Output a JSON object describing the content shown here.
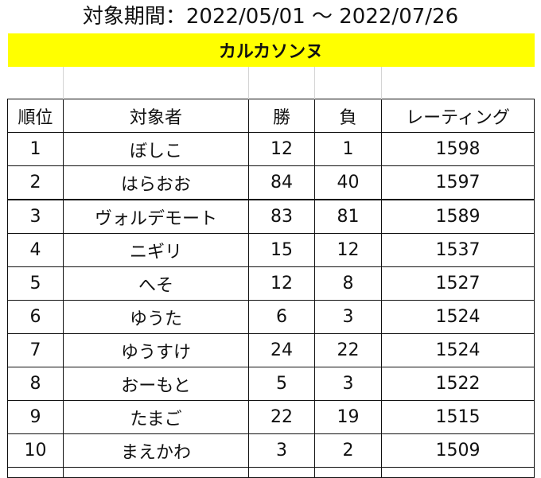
{
  "period_text": "対象期間：2022/05/01 ～ 2022/07/26",
  "sheet_title": "カルカソンヌ",
  "columns": [
    "順位",
    "対象者",
    "勝",
    "負",
    "レーティング"
  ],
  "rows": [
    {
      "rank": "1",
      "name": "ぼしこ",
      "wins": "12",
      "losses": "1",
      "rating": "1598"
    },
    {
      "rank": "2",
      "name": "はらおお",
      "wins": "84",
      "losses": "40",
      "rating": "1597"
    },
    {
      "rank": "3",
      "name": "ヴォルデモート",
      "wins": "83",
      "losses": "81",
      "rating": "1589"
    },
    {
      "rank": "4",
      "name": "ニギリ",
      "wins": "15",
      "losses": "12",
      "rating": "1537"
    },
    {
      "rank": "5",
      "name": "へそ",
      "wins": "12",
      "losses": "8",
      "rating": "1527"
    },
    {
      "rank": "6",
      "name": "ゆうた",
      "wins": "6",
      "losses": "3",
      "rating": "1524"
    },
    {
      "rank": "7",
      "name": "ゆうすけ",
      "wins": "24",
      "losses": "22",
      "rating": "1524"
    },
    {
      "rank": "8",
      "name": "おーもと",
      "wins": "5",
      "losses": "3",
      "rating": "1522"
    },
    {
      "rank": "9",
      "name": "たまご",
      "wins": "22",
      "losses": "19",
      "rating": "1515"
    },
    {
      "rank": "10",
      "name": "まえかわ",
      "wins": "3",
      "losses": "2",
      "rating": "1509"
    }
  ],
  "colors": {
    "title_band": "#ffff00",
    "grid": "#111111",
    "light_grid": "#d4d4d4"
  }
}
